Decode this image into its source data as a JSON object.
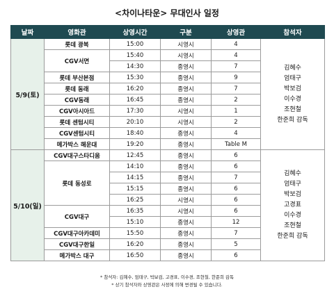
{
  "title": "<차이나타운> 무대인사 일정",
  "headers": [
    "날짜",
    "영화관",
    "상영시간",
    "구분",
    "상영관",
    "참석자"
  ],
  "groups": [
    {
      "date": "5/9(토)",
      "attendees": [
        "김혜수",
        "엄태구",
        "박보검",
        "이수경",
        "조현철",
        "한준희 감독"
      ],
      "rows": [
        {
          "theater": "롯데 광복",
          "time": "15:00",
          "type": "시영시",
          "screen": "4",
          "span": 1
        },
        {
          "theater": "CGV서면",
          "time": "15:40",
          "type": "시영시",
          "screen": "4",
          "span": 2
        },
        {
          "theater": null,
          "time": "14:30",
          "type": "종영시",
          "screen": "7"
        },
        {
          "theater": "롯데 부산본점",
          "time": "15:30",
          "type": "종영시",
          "screen": "9",
          "span": 1
        },
        {
          "theater": "롯데 동래",
          "time": "16:20",
          "type": "종영시",
          "screen": "7",
          "span": 1
        },
        {
          "theater": "CGV동래",
          "time": "16:45",
          "type": "종영시",
          "screen": "2",
          "span": 1
        },
        {
          "theater": "CGV아시아드",
          "time": "17:30",
          "type": "시영시",
          "screen": "1",
          "span": 1
        },
        {
          "theater": "롯데 센텀시티",
          "time": "20:10",
          "type": "시영시",
          "screen": "2",
          "span": 1
        },
        {
          "theater": "CGV센텀시티",
          "time": "18:40",
          "type": "종영시",
          "screen": "4",
          "span": 1
        },
        {
          "theater": "메가박스 해운대",
          "time": "19:20",
          "type": "종영시",
          "screen": "Table M",
          "span": 1
        }
      ]
    },
    {
      "date": "5/10(일)",
      "attendees": [
        "김혜수",
        "엄태구",
        "박보검",
        "고경표",
        "이수경",
        "조현철",
        "한준희 감독"
      ],
      "rows": [
        {
          "theater": "CGV대구스타디움",
          "time": "12:45",
          "type": "종영시",
          "screen": "6",
          "span": 1
        },
        {
          "theater": "롯데 동성로",
          "time": "14:10",
          "type": "종영시",
          "screen": "6",
          "span": 4
        },
        {
          "theater": null,
          "time": "14:15",
          "type": "종영시",
          "screen": "7"
        },
        {
          "theater": null,
          "time": "15:15",
          "type": "종영시",
          "screen": "6"
        },
        {
          "theater": null,
          "time": "16:25",
          "type": "시영시",
          "screen": "6"
        },
        {
          "theater": "CGV대구",
          "time": "16:35",
          "type": "시영시",
          "screen": "6",
          "span": 2
        },
        {
          "theater": null,
          "time": "15:10",
          "type": "종영시",
          "screen": "12"
        },
        {
          "theater": "CGV대구아카데미",
          "time": "15:50",
          "type": "종영시",
          "screen": "7",
          "span": 1
        },
        {
          "theater": "CGV대구한일",
          "time": "16:20",
          "type": "종영시",
          "screen": "5",
          "span": 1
        },
        {
          "theater": "메가박스 대구",
          "time": "16:50",
          "type": "종영시",
          "screen": "6",
          "span": 1
        }
      ]
    }
  ],
  "notes": [
    "* 참석자: 김혜수, 엄태구, 박보검, 고경표, 이수경, 조현철, 한준희 감독",
    "* 상기 참석자와 상영관은 사정에 의해 변경될 수 있습니다."
  ]
}
